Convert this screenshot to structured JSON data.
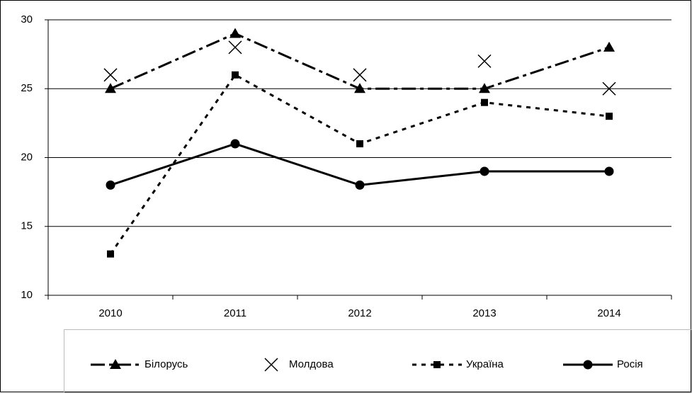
{
  "chart_data": {
    "type": "line",
    "categories": [
      "2010",
      "2011",
      "2012",
      "2013",
      "2014"
    ],
    "series": [
      {
        "name": "Білорусь",
        "color": "#000000",
        "line_style": "dash-dot",
        "marker": "triangle",
        "values": [
          25,
          29,
          25,
          25,
          28
        ]
      },
      {
        "name": "Молдова",
        "color": "#000000",
        "line_style": "none",
        "marker": "x",
        "values": [
          26,
          28,
          26,
          27,
          25
        ]
      },
      {
        "name": "Україна",
        "color": "#000000",
        "line_style": "dotted",
        "marker": "square",
        "values": [
          13,
          26,
          21,
          24,
          23
        ]
      },
      {
        "name": "Росія",
        "color": "#000000",
        "line_style": "solid",
        "marker": "circle",
        "values": [
          18,
          21,
          18,
          19,
          19
        ]
      }
    ],
    "ylim": [
      10,
      30
    ],
    "yticks": [
      10,
      15,
      20,
      25,
      30
    ],
    "grid": true,
    "legend": "bottom"
  }
}
